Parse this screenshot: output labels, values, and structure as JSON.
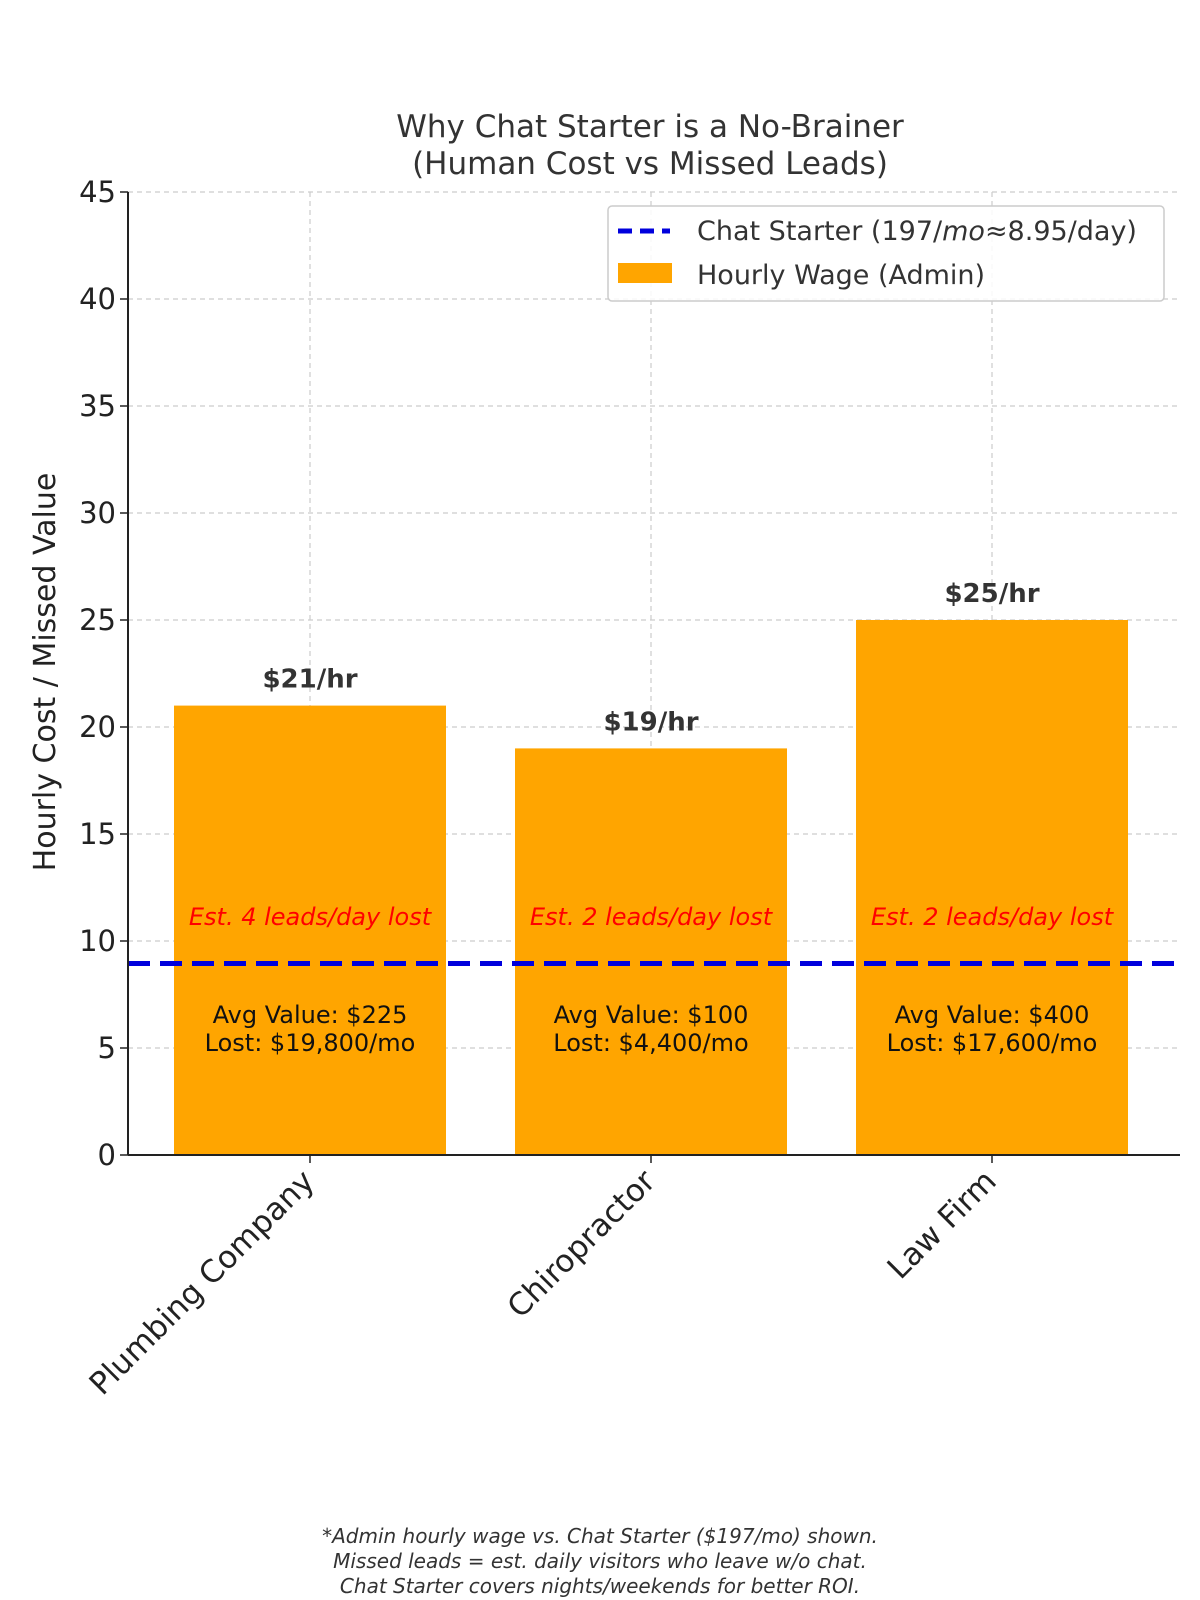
{
  "chart_data": {
    "type": "bar",
    "title": "Why Chat Starter is a No-Brainer",
    "subtitle": "(Human Cost vs Missed Leads)",
    "xlabel": "",
    "ylabel": "Hourly Cost / Missed Value",
    "ylim": [
      0,
      45
    ],
    "yticks": [
      "0",
      "5",
      "10",
      "15",
      "20",
      "25",
      "30",
      "35",
      "40",
      "45"
    ],
    "grid": true,
    "categories": [
      "Plumbing Company",
      "Chiropractor",
      "Law Firm"
    ],
    "series": [
      {
        "name": "Hourly Wage (Admin)",
        "values": [
          21,
          19,
          25
        ],
        "color": "#FFA500"
      }
    ],
    "reference_line": {
      "name": "Chat Starter (197/mo≈8.95/day)",
      "legend_parts": [
        "Chat Starter (197/",
        "mo",
        "≈8.95/day)"
      ],
      "value": 8.95,
      "color": "#0000DD",
      "style": "dashed"
    },
    "legend_position": "top-right",
    "bar_labels": [
      "$21/hr",
      "$19/hr",
      "$25/hr"
    ],
    "lost_labels": [
      "Est. 4 leads/day lost",
      "Est. 2 leads/day lost",
      "Est. 2 leads/day lost"
    ],
    "lost_label_color": "#FF0000",
    "value_labels": [
      [
        "Avg Value: $225",
        "Lost: $19,800/mo"
      ],
      [
        "Avg Value: $100",
        "Lost: $4,400/mo"
      ],
      [
        "Avg Value: $400",
        "Lost: $17,600/mo"
      ]
    ]
  },
  "footnote": [
    "*Admin hourly wage vs. Chat Starter ($197/mo) shown.",
    "Missed leads = est. daily visitors who leave w/o chat.",
    "Chat Starter covers nights/weekends for better ROI."
  ]
}
